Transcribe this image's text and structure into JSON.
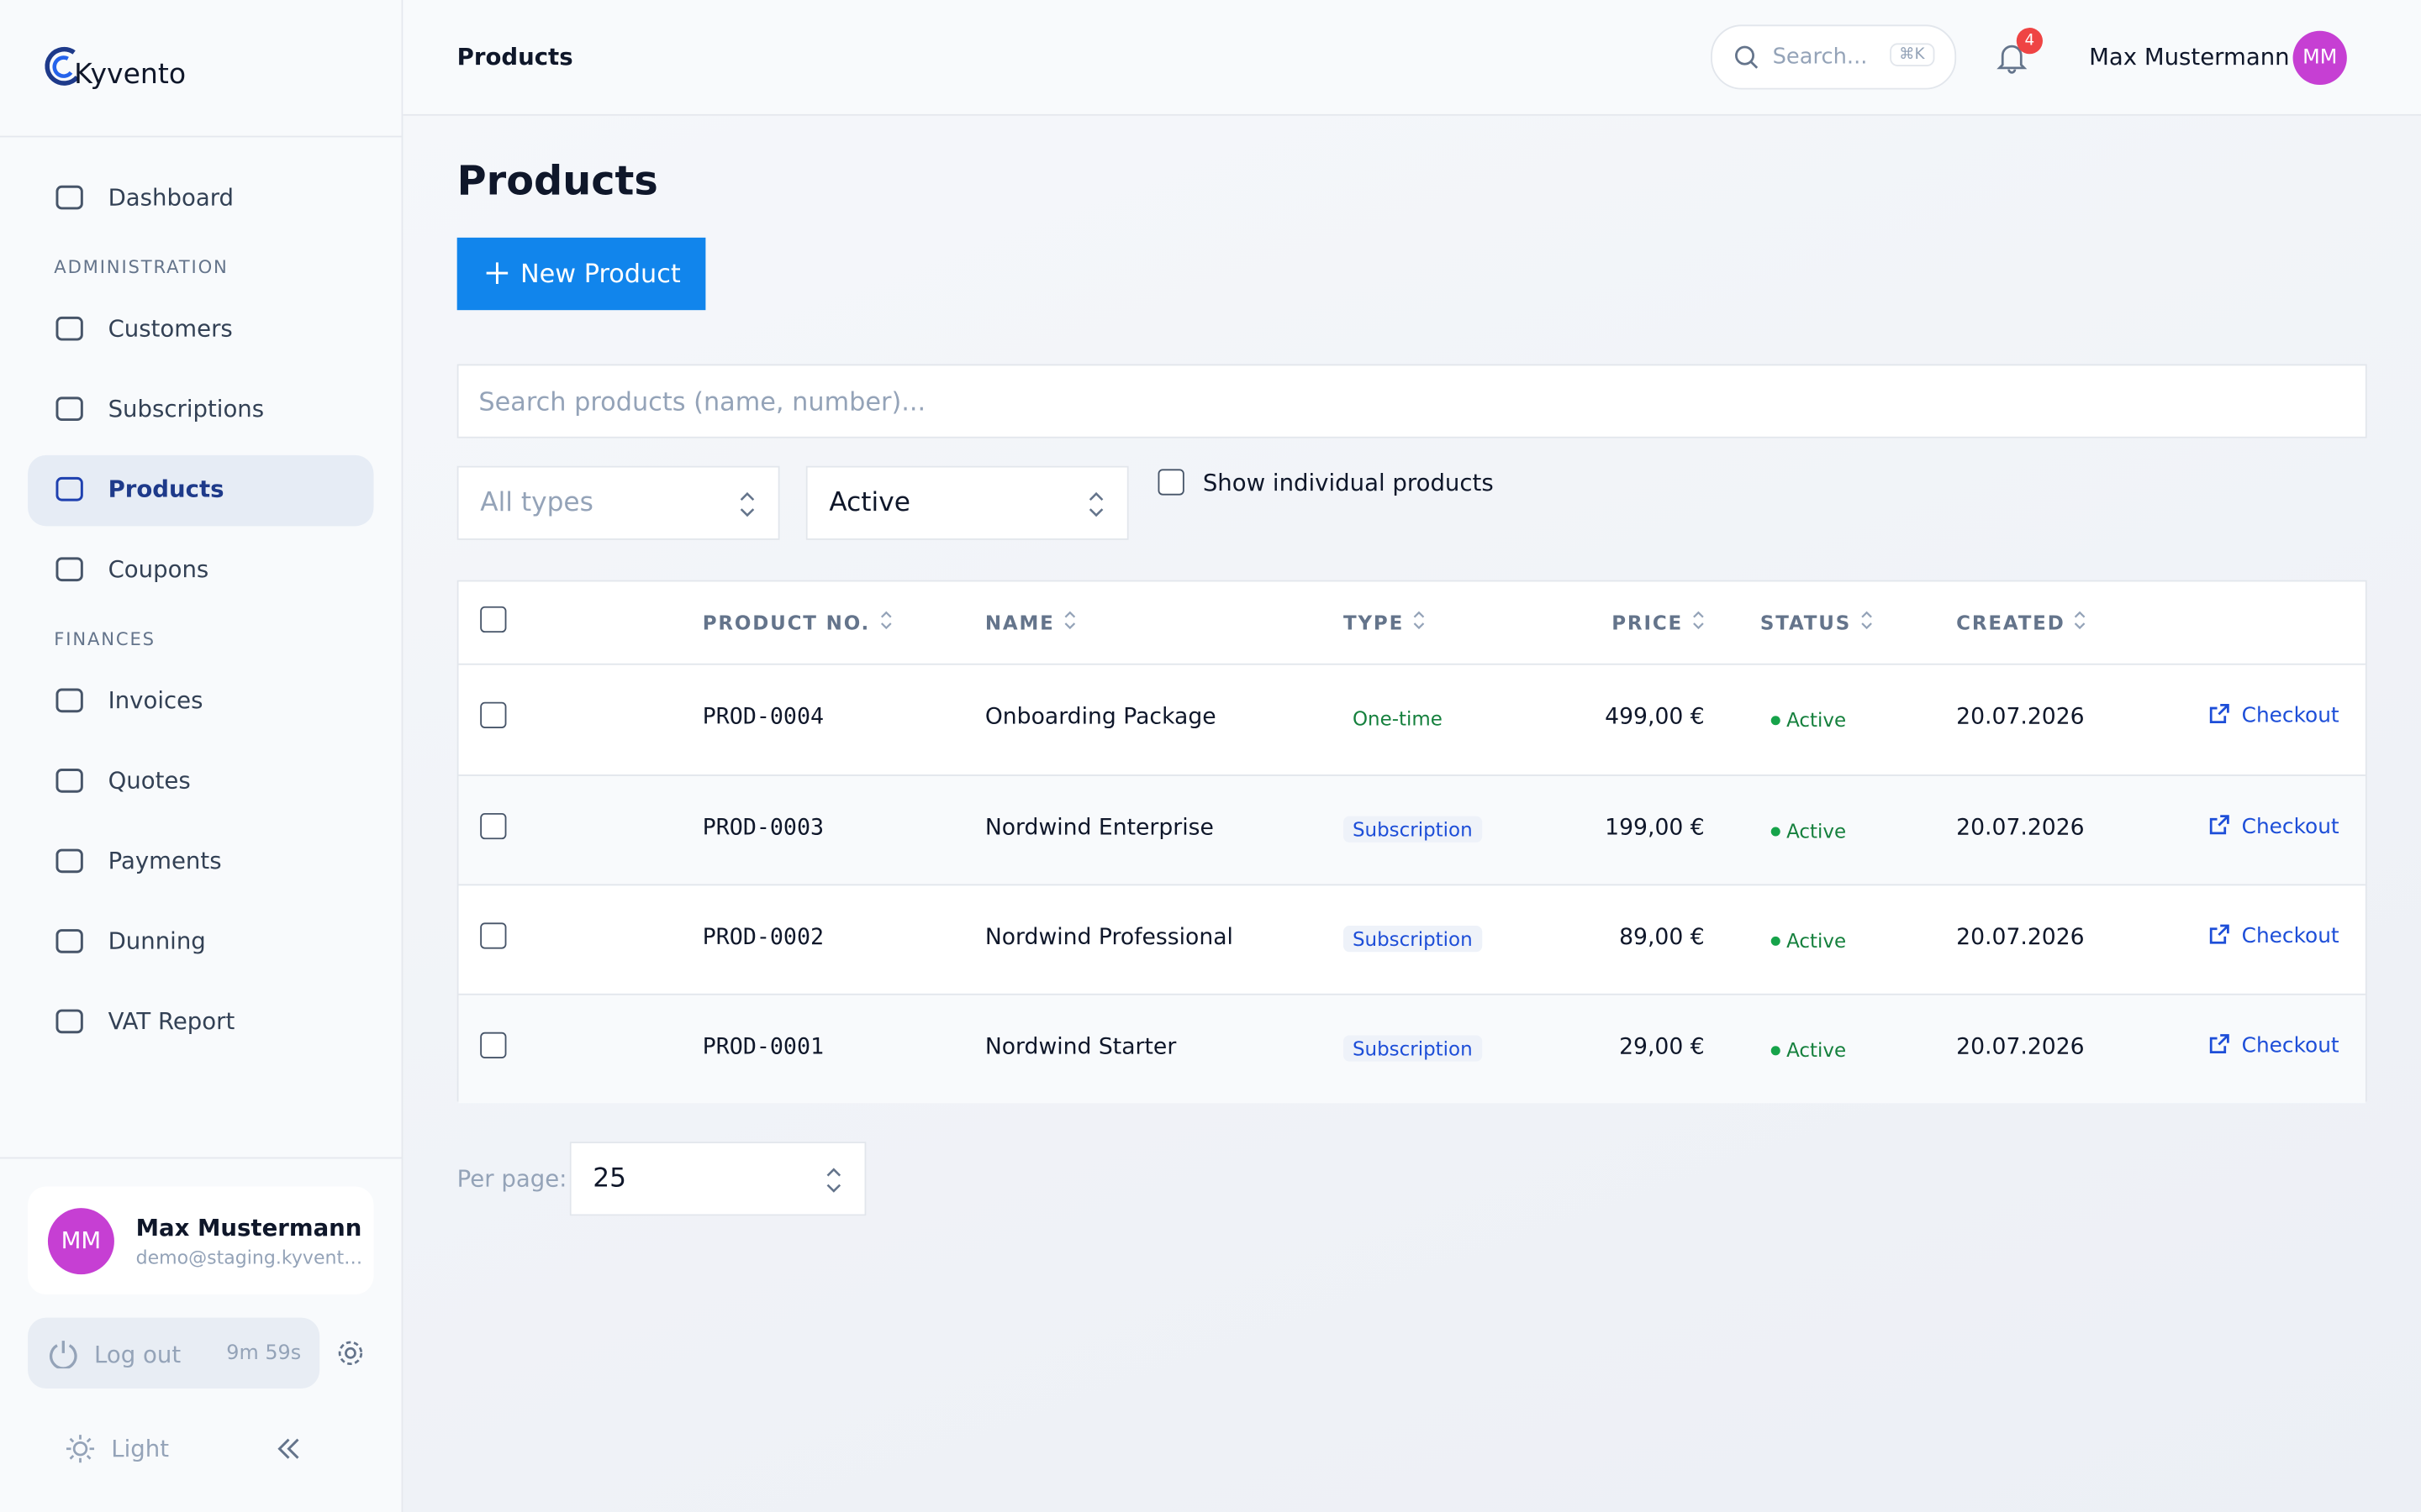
{
  "brand": "Kyvento",
  "sidebar": {
    "top": [
      {
        "label": "Dashboard",
        "active": false
      }
    ],
    "sections": [
      {
        "title": "ADMINISTRATION",
        "items": [
          {
            "label": "Customers",
            "active": false
          },
          {
            "label": "Subscriptions",
            "active": false
          },
          {
            "label": "Products",
            "active": true
          },
          {
            "label": "Coupons",
            "active": false
          }
        ]
      },
      {
        "title": "FINANCES",
        "items": [
          {
            "label": "Invoices",
            "active": false
          },
          {
            "label": "Quotes",
            "active": false
          },
          {
            "label": "Payments",
            "active": false
          },
          {
            "label": "Dunning",
            "active": false
          },
          {
            "label": "VAT Report",
            "active": false
          }
        ]
      }
    ],
    "user": {
      "initials": "MM",
      "name": "Max Mustermann",
      "email": "demo@staging.kyvent…"
    },
    "logout": "Log out",
    "timer": "9m 59s",
    "theme": "Light"
  },
  "header": {
    "breadcrumb": "Products",
    "search_placeholder": "Search...",
    "shortcut": "⌘K",
    "notifications": "4",
    "user_name": "Max Mustermann",
    "initials": "MM"
  },
  "page": {
    "title": "Products",
    "new_button": "New Product",
    "search_placeholder": "Search products (name, number)...",
    "filters": [
      {
        "text": "All types",
        "placeholder": true
      },
      {
        "text": "Active",
        "placeholder": false
      }
    ],
    "checkbox_label": "Show individual products"
  },
  "table": {
    "columns": [
      "PRODUCT NO.",
      "NAME",
      "TYPE",
      "PRICE",
      "STATUS",
      "CREATED"
    ],
    "rows": [
      {
        "number": "PROD-0004",
        "name": "Onboarding Package",
        "type": "One-time",
        "type_color": "#15803d",
        "type_bg": "transparent",
        "price": "499,00 €",
        "status": "Active",
        "created": "20.07.2026",
        "action": "Checkout"
      },
      {
        "number": "PROD-0003",
        "name": "Nordwind Enterprise",
        "type": "Subscription",
        "type_color": "#1d4ed8",
        "type_bg": "#eef2f9",
        "price": "199,00 €",
        "status": "Active",
        "created": "20.07.2026",
        "action": "Checkout"
      },
      {
        "number": "PROD-0002",
        "name": "Nordwind Professional",
        "type": "Subscription",
        "type_color": "#1d4ed8",
        "type_bg": "#eef2f9",
        "price": "89,00 €",
        "status": "Active",
        "created": "20.07.2026",
        "action": "Checkout"
      },
      {
        "number": "PROD-0001",
        "name": "Nordwind Starter",
        "type": "Subscription",
        "type_color": "#1d4ed8",
        "type_bg": "#eef2f9",
        "price": "29,00 €",
        "status": "Active",
        "created": "20.07.2026",
        "action": "Checkout"
      }
    ]
  },
  "pagination": {
    "label": "Per page:",
    "value": "25"
  }
}
